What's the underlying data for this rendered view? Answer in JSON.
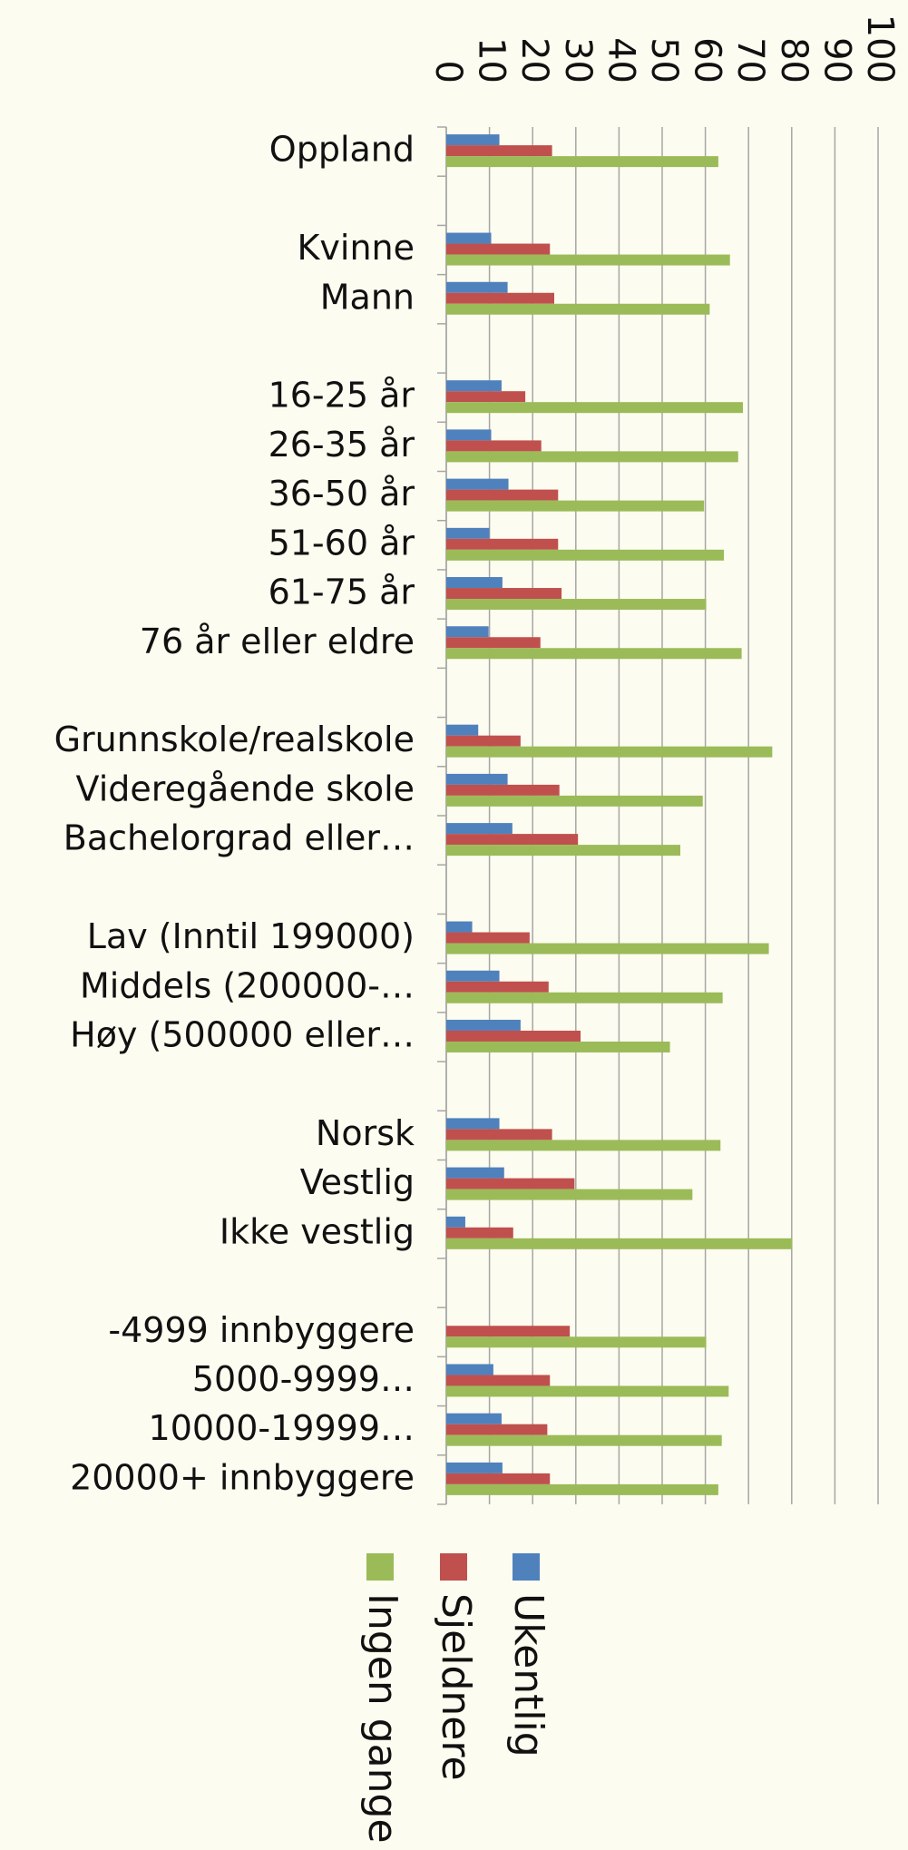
{
  "chart_data": {
    "type": "bar",
    "orientation": "horizontal",
    "categories": [
      "Oppland",
      null,
      "Kvinne",
      "Mann",
      null,
      "16-25 år",
      "26-35 år",
      "36-50 år",
      "51-60 år",
      "61-75 år",
      "76 år eller eldre",
      null,
      "Grunnskole/realskole",
      "Videregående skole",
      "Bachelorgrad eller…",
      null,
      "Lav (Inntil 199000)",
      "Middels (200000-…",
      "Høy (500000 eller…",
      null,
      "Norsk",
      "Vestlig",
      "Ikke vestlig",
      null,
      "-4999 innbyggere",
      "5000-9999…",
      "10000-19999…",
      "20000+ innbyggere"
    ],
    "series": [
      {
        "name": "Ukentlig",
        "color": "#4f81bd",
        "values": [
          12.3,
          null,
          10.4,
          14.2,
          null,
          12.8,
          10.4,
          14.4,
          10,
          13,
          9.8,
          null,
          7.4,
          14.2,
          15.3,
          null,
          6,
          12.3,
          17.2,
          null,
          12.3,
          13.4,
          4.4,
          null,
          0,
          10.9,
          12.8,
          13
        ]
      },
      {
        "name": "Sjeldnere",
        "color": "#c0504d",
        "values": [
          24.5,
          null,
          24,
          25,
          null,
          18.3,
          22,
          25.9,
          25.9,
          26.7,
          21.8,
          null,
          17.2,
          26.2,
          30.5,
          null,
          19.3,
          23.7,
          31.1,
          null,
          24.5,
          29.7,
          15.5,
          null,
          28.6,
          24,
          23.4,
          24
        ]
      },
      {
        "name": "Ingen ganger",
        "color": "#9bbb59",
        "values": [
          63,
          null,
          65.7,
          61,
          null,
          68.7,
          67.6,
          59.7,
          64.3,
          60.2,
          68.4,
          null,
          75.5,
          59.4,
          54.2,
          null,
          74.7,
          64,
          51.8,
          null,
          63.5,
          57,
          80.1,
          null,
          60.2,
          65.4,
          63.8,
          63
        ]
      }
    ],
    "xlim": [
      0,
      100
    ],
    "xticks": [
      0,
      10,
      20,
      30,
      40,
      50,
      60,
      70,
      80,
      90,
      100
    ],
    "grid": true,
    "legend": "bottom"
  }
}
